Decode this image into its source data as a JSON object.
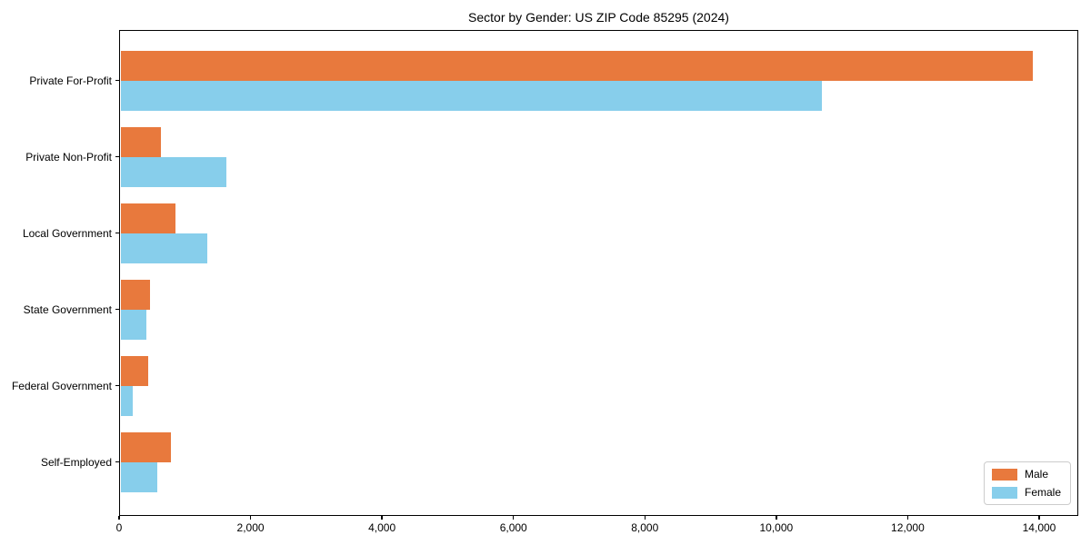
{
  "chart_data": {
    "type": "bar",
    "orientation": "horizontal",
    "title": "Sector by Gender: US ZIP Code 85295 (2024)",
    "xlabel": "",
    "ylabel": "",
    "grid": false,
    "legend_position": "lower right",
    "xlim": [
      0,
      14595
    ],
    "categories": [
      "Private For-Profit",
      "Private Non-Profit",
      "Local Government",
      "State Government",
      "Federal Government",
      "Self-Employed"
    ],
    "series": [
      {
        "name": "Male",
        "color": "#e8793d",
        "values": [
          13900,
          630,
          860,
          470,
          440,
          785
        ]
      },
      {
        "name": "Female",
        "color": "#87ceeb",
        "values": [
          10700,
          1630,
          1340,
          420,
          205,
          580
        ]
      }
    ],
    "x_ticks": [
      {
        "value": 0,
        "label": "0"
      },
      {
        "value": 2000,
        "label": "2,000"
      },
      {
        "value": 4000,
        "label": "4,000"
      },
      {
        "value": 6000,
        "label": "6,000"
      },
      {
        "value": 8000,
        "label": "8,000"
      },
      {
        "value": 10000,
        "label": "10,000"
      },
      {
        "value": 12000,
        "label": "12,000"
      },
      {
        "value": 14000,
        "label": "14,000"
      }
    ]
  }
}
